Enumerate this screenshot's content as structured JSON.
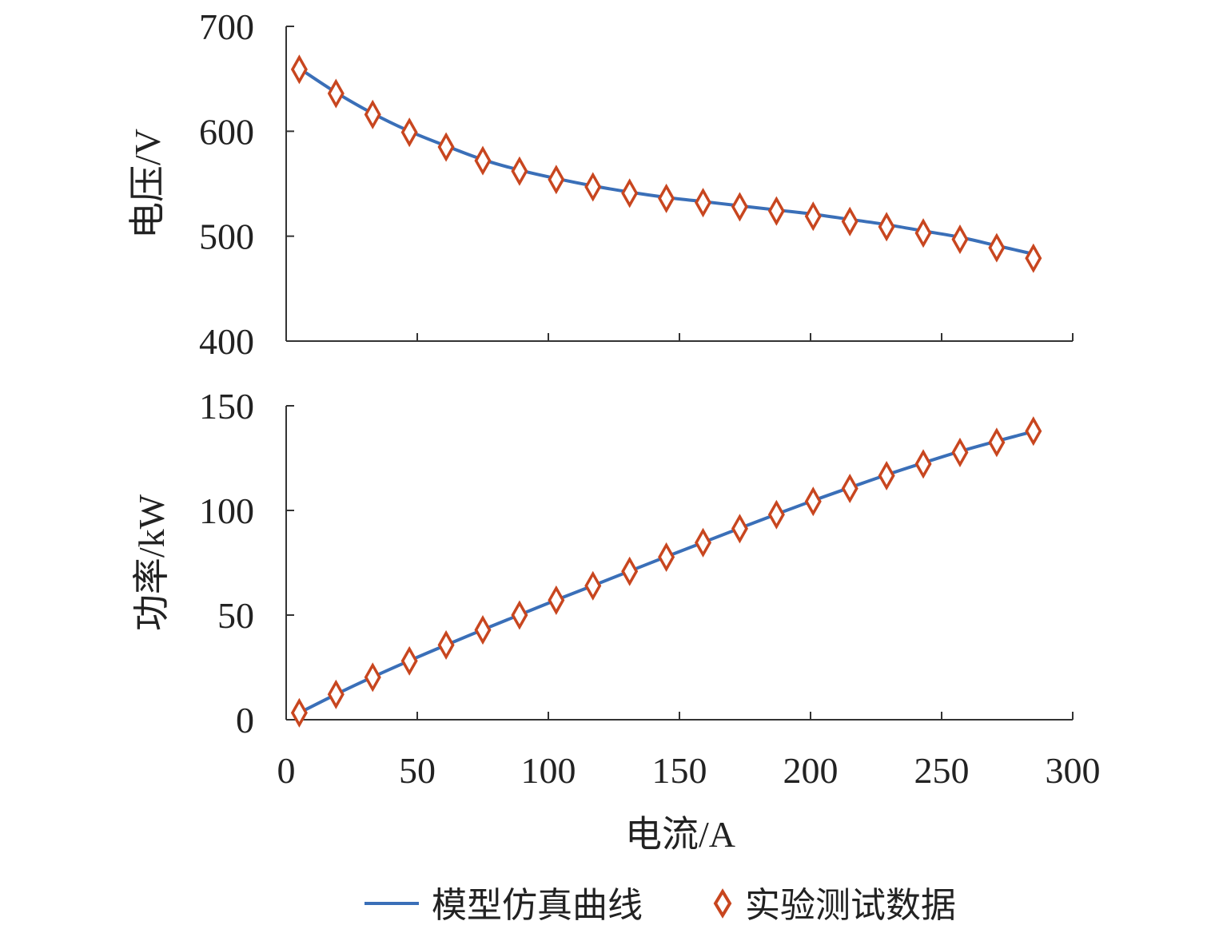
{
  "chart_data": [
    {
      "type": "line",
      "panel": "top",
      "ylabel": "电压/V",
      "ylim": [
        400,
        700
      ],
      "yticks": [
        400,
        500,
        600,
        700
      ],
      "xlim": [
        0,
        300
      ],
      "xticks": [
        0,
        50,
        100,
        150,
        200,
        250,
        300
      ],
      "series": [
        {
          "name": "模型仿真曲线",
          "style": "line",
          "color": "#3A6FB8",
          "x": [
            5,
            19,
            33,
            47,
            61,
            75,
            89,
            103,
            117,
            131,
            145,
            159,
            173,
            187,
            201,
            215,
            229,
            243,
            257,
            271,
            285
          ],
          "y": [
            660,
            637,
            617,
            600,
            586,
            573,
            563,
            555,
            548,
            542,
            537,
            533,
            529,
            525,
            521,
            516,
            511,
            505,
            499,
            491,
            483
          ]
        },
        {
          "name": "实验测试数据",
          "style": "marker",
          "color": "#C8461F",
          "x": [
            5,
            19,
            33,
            47,
            61,
            75,
            89,
            103,
            117,
            131,
            145,
            159,
            173,
            187,
            201,
            215,
            229,
            243,
            257,
            271,
            285
          ],
          "y": [
            659,
            636,
            616,
            599,
            585,
            572,
            562,
            554,
            547,
            541,
            536,
            532,
            528,
            524,
            519,
            514,
            509,
            503,
            497,
            489,
            479
          ]
        }
      ]
    },
    {
      "type": "line",
      "panel": "bottom",
      "ylabel": "功率/kW",
      "xlabel": "电流/A",
      "ylim": [
        0,
        150
      ],
      "yticks": [
        0,
        50,
        100,
        150
      ],
      "xlim": [
        0,
        300
      ],
      "xticks": [
        0,
        50,
        100,
        150,
        200,
        250,
        300
      ],
      "series": [
        {
          "name": "模型仿真曲线",
          "style": "line",
          "color": "#3A6FB8",
          "x": [
            5,
            19,
            33,
            47,
            61,
            75,
            89,
            103,
            117,
            131,
            145,
            159,
            173,
            187,
            201,
            215,
            229,
            243,
            257,
            271,
            285
          ],
          "y": [
            3.3,
            12.1,
            20.4,
            28.2,
            35.7,
            43.0,
            50.1,
            57.2,
            64.1,
            71.0,
            77.9,
            84.7,
            91.5,
            98.2,
            104.7,
            110.9,
            117.0,
            122.7,
            128.2,
            133.1,
            137.7
          ]
        },
        {
          "name": "实验测试数据",
          "style": "marker",
          "color": "#C8461F",
          "x": [
            5,
            19,
            33,
            47,
            61,
            75,
            89,
            103,
            117,
            131,
            145,
            159,
            173,
            187,
            201,
            215,
            229,
            243,
            257,
            271,
            285
          ],
          "y": [
            3.3,
            12.1,
            20.3,
            28.1,
            35.7,
            42.9,
            50.0,
            57.1,
            64.0,
            70.9,
            77.7,
            84.6,
            91.3,
            98.0,
            104.3,
            110.5,
            116.6,
            122.2,
            127.7,
            132.5,
            137.9
          ]
        }
      ]
    }
  ],
  "legend": {
    "line_label": "模型仿真曲线",
    "marker_label": "实验测试数据",
    "placement": "bottom-center"
  }
}
